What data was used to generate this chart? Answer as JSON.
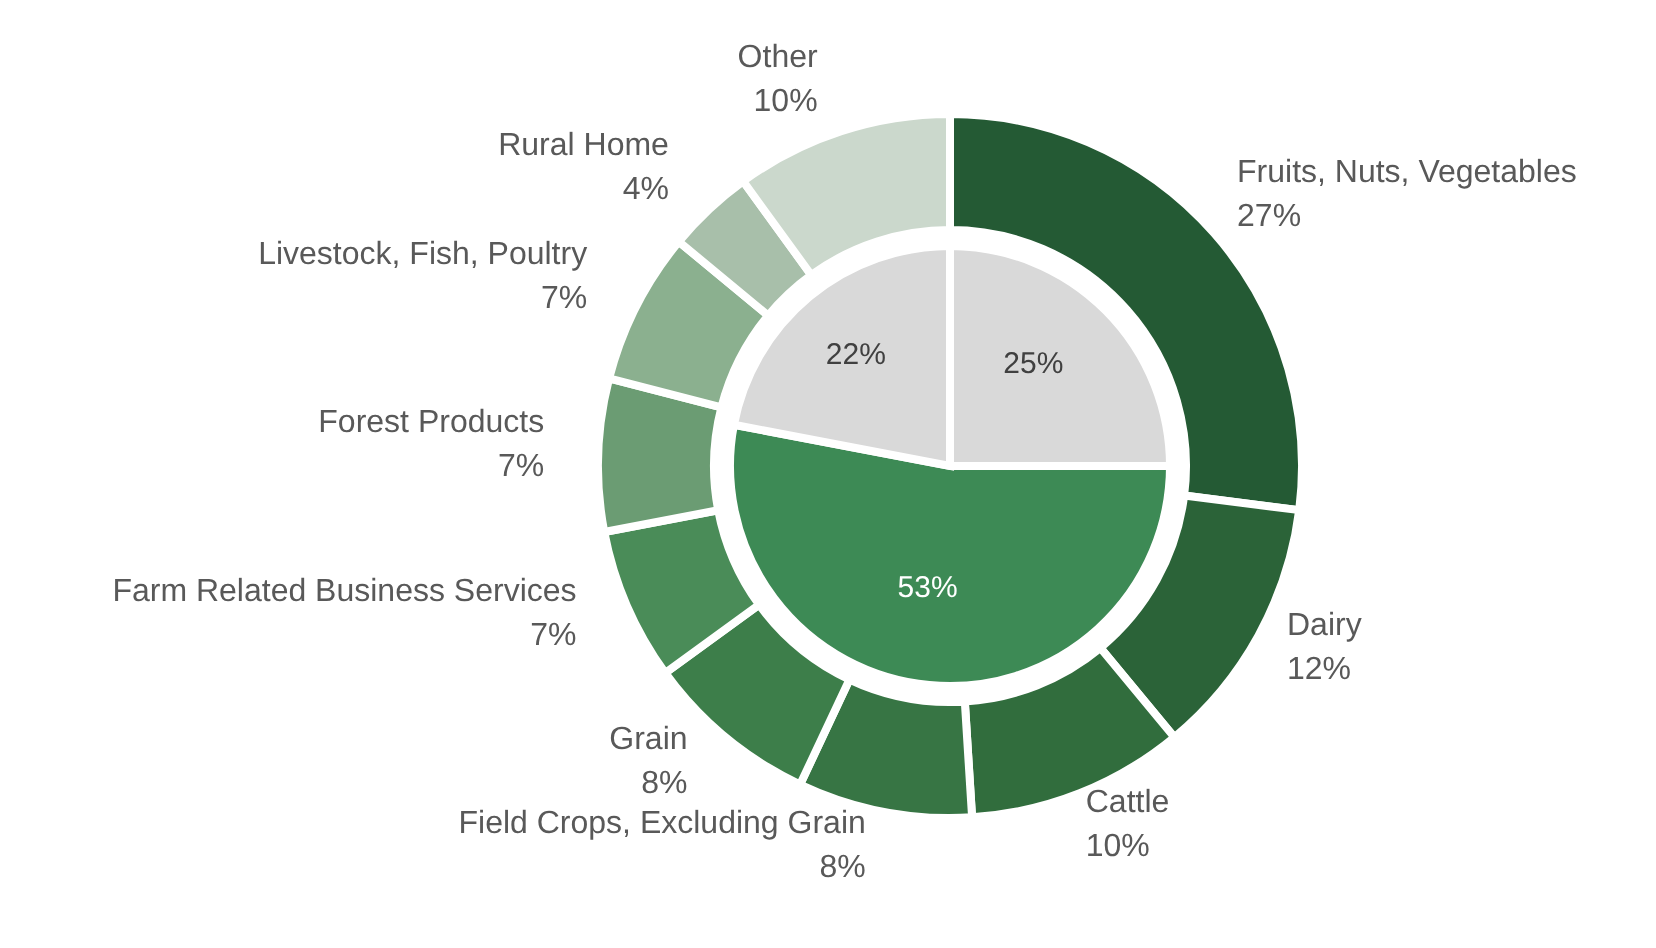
{
  "chart_data": [
    {
      "type": "donut",
      "categories": [
        "Fruits, Nuts, Vegetables",
        "Dairy",
        "Cattle",
        "Field Crops, Excluding Grain",
        "Grain",
        "Farm Related Business Services",
        "Forest Products",
        "Livestock, Fish, Poultry",
        "Rural Home",
        "Other"
      ],
      "values": [
        27,
        12,
        10,
        8,
        8,
        7,
        7,
        7,
        4,
        10
      ],
      "colors": [
        "#245a34",
        "#2b6338",
        "#316d3d",
        "#377544",
        "#3d7e4a",
        "#4a8c58",
        "#6b9c73",
        "#8bb08f",
        "#a8bfaa",
        "#cbd8cc"
      ],
      "value_labels": [
        "27%",
        "12%",
        "10%",
        "8%",
        "8%",
        "7%",
        "7%",
        "7%",
        "4%",
        "10%"
      ]
    },
    {
      "type": "pie",
      "categories": [
        null,
        null,
        null
      ],
      "values": [
        25,
        53,
        22
      ],
      "colors": [
        "#d9d9d9",
        "#3d8a55",
        "#d9d9d9"
      ],
      "value_labels": [
        "25%",
        "53%",
        "22%"
      ]
    }
  ]
}
